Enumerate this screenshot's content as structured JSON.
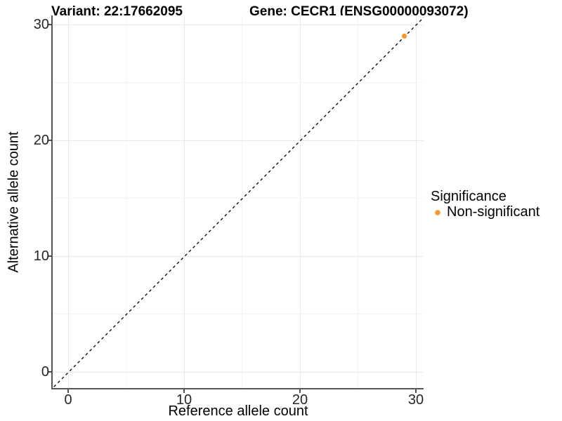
{
  "header": {
    "variant_title": "Variant: 22:17662095",
    "gene_title": "Gene: CECR1 (ENSG00000093072)"
  },
  "axes": {
    "x": {
      "label": "Reference allele count",
      "ticks": [
        "0",
        "10",
        "20",
        "30"
      ]
    },
    "y": {
      "label": "Alternative allele count",
      "ticks": [
        "0",
        "10",
        "20",
        "30"
      ]
    }
  },
  "legend": {
    "title": "Significance",
    "items": [
      {
        "label": "Non-significant",
        "color": "#F89828"
      }
    ]
  },
  "colors": {
    "point": "#F89828",
    "identity_line": "#000000",
    "axis_line": "#555555",
    "grid_major": "#e9e9e9",
    "grid_minor": "#f4f4f4"
  },
  "chart_data": {
    "type": "scatter",
    "title": "Variant: 22:17662095 / Gene: CECR1 (ENSG00000093072)",
    "xlabel": "Reference allele count",
    "ylabel": "Alternative allele count",
    "xlim": [
      0,
      30
    ],
    "ylim": [
      0,
      30
    ],
    "x_ticks": [
      0,
      10,
      20,
      30
    ],
    "y_ticks": [
      0,
      10,
      20,
      30
    ],
    "grid": "major + minor (at 5,15,25) gridlines, white background",
    "legend_position": "right",
    "series": [
      {
        "name": "Non-significant",
        "color": "#F89828",
        "points": [
          {
            "x": 29,
            "y": 29
          }
        ]
      }
    ],
    "reference_line": {
      "type": "identity y = x",
      "slope": 1,
      "intercept": 0,
      "style": "dashed",
      "color": "#000000"
    }
  }
}
